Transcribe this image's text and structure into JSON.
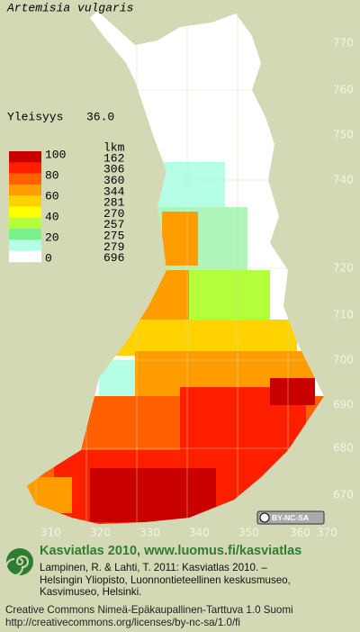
{
  "title": "Artemisia vulgaris",
  "frequency": {
    "label": "Yleisyys",
    "value": "36.0"
  },
  "legend": {
    "count_header": "lkm",
    "scale_labels": [
      "100",
      "80",
      "60",
      "40",
      "20",
      "0"
    ],
    "classes": [
      {
        "count": 162,
        "color": "#c80000"
      },
      {
        "count": 306,
        "color": "#ff2000"
      },
      {
        "count": 360,
        "color": "#ff6000"
      },
      {
        "count": 344,
        "color": "#ff9c00"
      },
      {
        "count": 281,
        "color": "#ffd200"
      },
      {
        "count": 270,
        "color": "#ffff00"
      },
      {
        "count": 257,
        "color": "#b4ff3c"
      },
      {
        "count": 275,
        "color": "#78f08c"
      },
      {
        "count": 279,
        "color": "#b4ffe6"
      },
      {
        "count": 696,
        "color": "#ffffff"
      }
    ]
  },
  "grid": {
    "x_labels": [
      "310",
      "320",
      "330",
      "340",
      "350",
      "360",
      "370"
    ],
    "y_labels": [
      "770",
      "760",
      "750",
      "740",
      "720",
      "710",
      "700",
      "690",
      "680",
      "670"
    ]
  },
  "badge": "BY-NC-SA",
  "footer": {
    "heading": "Kasviatlas 2010, www.luomus.fi/kasviatlas",
    "citation": [
      "Lampinen, R. & Lahti, T. 2011: Kasviatlas 2010. –",
      "Helsingin Yliopisto, Luonnontieteellinen keskusmuseo,",
      "Kasvimuseo, Helsinki."
    ],
    "license": [
      "Creative Commons Nimeä-Epäkaupallinen-Tarttuva 1.0 Suomi",
      "http://creativecommons.org/licenses/by-nc-sa/1.0/fi"
    ]
  }
}
